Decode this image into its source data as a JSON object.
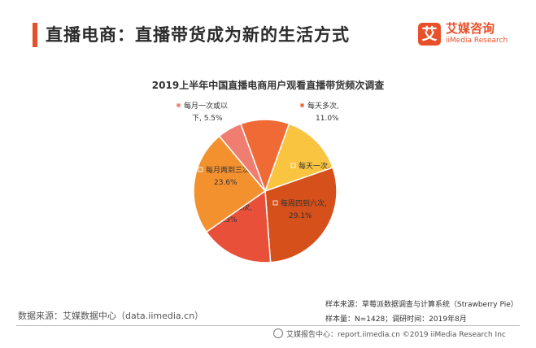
{
  "header": {
    "title": "直播电商：直播带货成为新的生活方式",
    "accent_color": "#e8502a"
  },
  "logo": {
    "mark": "艾",
    "name": "艾媒咨询",
    "sub": "iiMedia Research"
  },
  "chart_data": {
    "type": "pie",
    "title": "2019上半年中国直播电商用户观看直播带货频次调查",
    "legend": "none",
    "slices": [
      {
        "label_lines": [
          "每天多次,",
          "11.0%"
        ],
        "value": 11.0,
        "color": "#f06a35"
      },
      {
        "label_lines": [
          "每天一次,",
          "14.2%"
        ],
        "value": 14.2,
        "color": "#f9c440"
      },
      {
        "label_lines": [
          "每周四到六次,",
          "29.1%"
        ],
        "value": 29.1,
        "color": "#d5501a"
      },
      {
        "label_lines": [
          "每周一到三次,",
          "16.5%"
        ],
        "value": 16.5,
        "color": "#e8503a"
      },
      {
        "label_lines": [
          "每月两到三次,",
          "23.6%"
        ],
        "value": 23.6,
        "color": "#f4912f"
      },
      {
        "label_lines": [
          "每月一次或以",
          "下, 5.5%"
        ],
        "value": 5.5,
        "color": "#ef7d70"
      }
    ]
  },
  "sources": {
    "left": "数据来源：艾媒数据中心（data.iimedia.cn）",
    "right_line1": "样本来源：草莓派数据调查与计算系统（Strawberry Pie）",
    "right_line2": "样本量：N=1428；调研时间：2019年8月"
  },
  "footer": {
    "text": "艾媒报告中心：report.iimedia.cn  ©2019  iiMedia Research  Inc"
  }
}
